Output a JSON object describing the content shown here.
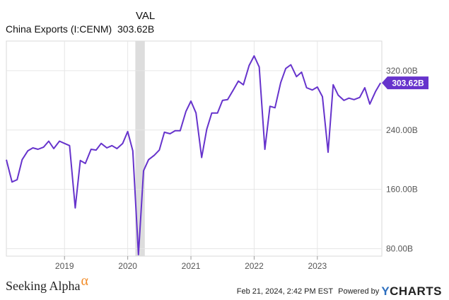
{
  "legend": {
    "column_header": "VAL",
    "series_name": "China Exports (I:CENM)",
    "series_value": "303.62B"
  },
  "chart_data": {
    "type": "line",
    "series": [
      {
        "name": "China Exports (I:CENM)",
        "color": "#6633cc",
        "points": [
          [
            2018.08,
            200
          ],
          [
            2018.17,
            170
          ],
          [
            2018.25,
            173
          ],
          [
            2018.33,
            200
          ],
          [
            2018.42,
            212
          ],
          [
            2018.5,
            216
          ],
          [
            2018.58,
            214
          ],
          [
            2018.67,
            217
          ],
          [
            2018.75,
            225
          ],
          [
            2018.83,
            215
          ],
          [
            2018.92,
            225
          ],
          [
            2019.0,
            222
          ],
          [
            2019.08,
            219
          ],
          [
            2019.17,
            135
          ],
          [
            2019.25,
            199
          ],
          [
            2019.33,
            195
          ],
          [
            2019.42,
            214
          ],
          [
            2019.5,
            213
          ],
          [
            2019.58,
            222
          ],
          [
            2019.67,
            216
          ],
          [
            2019.75,
            219
          ],
          [
            2019.83,
            215
          ],
          [
            2019.92,
            222
          ],
          [
            2020.0,
            238
          ],
          [
            2020.08,
            212
          ],
          [
            2020.17,
            72
          ],
          [
            2020.25,
            185
          ],
          [
            2020.33,
            200
          ],
          [
            2020.42,
            206
          ],
          [
            2020.5,
            213
          ],
          [
            2020.58,
            237
          ],
          [
            2020.67,
            235
          ],
          [
            2020.75,
            239
          ],
          [
            2020.83,
            239
          ],
          [
            2020.92,
            265
          ],
          [
            2021.0,
            279
          ],
          [
            2021.08,
            263
          ],
          [
            2021.17,
            203
          ],
          [
            2021.25,
            241
          ],
          [
            2021.33,
            263
          ],
          [
            2021.42,
            263
          ],
          [
            2021.5,
            280
          ],
          [
            2021.58,
            281
          ],
          [
            2021.67,
            294
          ],
          [
            2021.75,
            306
          ],
          [
            2021.83,
            301
          ],
          [
            2021.92,
            327
          ],
          [
            2022.0,
            340
          ],
          [
            2022.08,
            325
          ],
          [
            2022.17,
            214
          ],
          [
            2022.25,
            272
          ],
          [
            2022.33,
            270
          ],
          [
            2022.42,
            304
          ],
          [
            2022.5,
            323
          ],
          [
            2022.58,
            328
          ],
          [
            2022.67,
            312
          ],
          [
            2022.75,
            318
          ],
          [
            2022.83,
            297
          ],
          [
            2022.92,
            294
          ],
          [
            2023.0,
            298
          ],
          [
            2023.08,
            285
          ],
          [
            2023.17,
            210
          ],
          [
            2023.25,
            301
          ],
          [
            2023.33,
            287
          ],
          [
            2023.42,
            280
          ],
          [
            2023.5,
            283
          ],
          [
            2023.58,
            281
          ],
          [
            2023.67,
            284
          ],
          [
            2023.75,
            297
          ],
          [
            2023.83,
            275
          ],
          [
            2023.92,
            292
          ],
          [
            2024.0,
            303.62
          ]
        ]
      }
    ],
    "shaded_regions": [
      [
        2020.12,
        2020.27
      ]
    ],
    "shaded_color": "#dddddd",
    "xlim": [
      2018.08,
      2024.02
    ],
    "ylim": [
      70,
      360
    ],
    "x_ticks": [
      {
        "value": 2019.0,
        "label": "2019"
      },
      {
        "value": 2020.0,
        "label": "2020"
      },
      {
        "value": 2021.0,
        "label": "2021"
      },
      {
        "value": 2022.0,
        "label": "2022"
      },
      {
        "value": 2023.0,
        "label": "2023"
      }
    ],
    "y_ticks": [
      {
        "value": 80,
        "label": "80.00B"
      },
      {
        "value": 160,
        "label": "160.00B"
      },
      {
        "value": 240,
        "label": "240.00B"
      },
      {
        "value": 320,
        "label": "320.00B"
      }
    ],
    "last_value_label": "303.62B",
    "grid": true,
    "title": "",
    "xlabel": "",
    "ylabel": ""
  },
  "footer": {
    "logo_text": "Seeking Alpha",
    "logo_symbol": "α",
    "timestamp": "Feb 21, 2024, 2:42 PM EST",
    "powered_by": "Powered by",
    "brand_y": "Y",
    "brand_rest": "CHARTS"
  }
}
